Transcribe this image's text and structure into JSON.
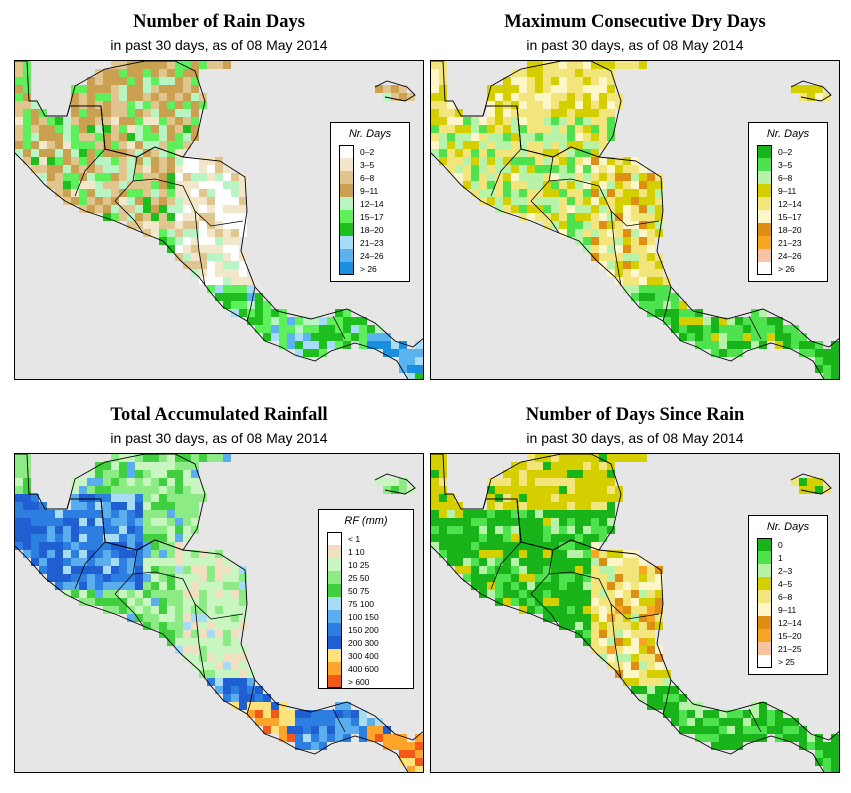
{
  "panels": [
    {
      "id": "rain-days",
      "title": "Number of Rain Days",
      "subtitle": "in past 30 days, as of  08 May 2014",
      "legend": {
        "title": "Nr. Days",
        "items": [
          {
            "label": "0–2",
            "color": "#ffffff"
          },
          {
            "label": "3–5",
            "color": "#f3e7cb"
          },
          {
            "label": "6–8",
            "color": "#e0c58f"
          },
          {
            "label": "9–11",
            "color": "#c9a150"
          },
          {
            "label": "12–14",
            "color": "#b9f5c4"
          },
          {
            "label": "15–17",
            "color": "#5ef05a"
          },
          {
            "label": "18–20",
            "color": "#1fbe1f"
          },
          {
            "label": "21–23",
            "color": "#a6dcf7"
          },
          {
            "label": "24–26",
            "color": "#5ab3ee"
          },
          {
            "label": "> 26",
            "color": "#1a8fe0"
          }
        ]
      },
      "scheme": "raindays"
    },
    {
      "id": "dry-days",
      "title": "Maximum Consecutive Dry Days",
      "subtitle": "in past 30 days, as of  08 May 2014",
      "legend": {
        "title": "Nr. Days",
        "items": [
          {
            "label": "0–2",
            "color": "#19b419"
          },
          {
            "label": "3–5",
            "color": "#4ee34e"
          },
          {
            "label": "6–8",
            "color": "#b6f2a8"
          },
          {
            "label": "9–11",
            "color": "#d6cf00"
          },
          {
            "label": "12–14",
            "color": "#f2e57c"
          },
          {
            "label": "15–17",
            "color": "#fdf6c8"
          },
          {
            "label": "18–20",
            "color": "#de8e12"
          },
          {
            "label": "21–23",
            "color": "#f6a623"
          },
          {
            "label": "24–26",
            "color": "#f6c3a3"
          },
          {
            "label": "> 26",
            "color": "#ffffff"
          }
        ]
      },
      "scheme": "drydays"
    },
    {
      "id": "rainfall",
      "title": "Total Accumulated Rainfall",
      "subtitle": "in past 30 days, as of  08 May 2014",
      "legend": {
        "title": "RF (mm)",
        "items": [
          {
            "label": "< 1",
            "color": "#ffffff"
          },
          {
            "label": "1  10",
            "color": "#f0dfc0"
          },
          {
            "label": "10  25",
            "color": "#c8f5c0"
          },
          {
            "label": "25  50",
            "color": "#8ceb84"
          },
          {
            "label": "50  75",
            "color": "#3fcf3f"
          },
          {
            "label": "75  100",
            "color": "#a8dcf5"
          },
          {
            "label": "100  150",
            "color": "#5aaeee"
          },
          {
            "label": "150  200",
            "color": "#2c7fe0"
          },
          {
            "label": "200  300",
            "color": "#1f5fd1"
          },
          {
            "label": "300  400",
            "color": "#fde37a"
          },
          {
            "label": "400  600",
            "color": "#fba52a"
          },
          {
            "label": "> 600",
            "color": "#f35a18"
          }
        ]
      },
      "scheme": "rainfall"
    },
    {
      "id": "since-rain",
      "title": "Number of Days Since Rain",
      "subtitle": "in past 30 days, as of  08 May 2014",
      "legend": {
        "title": "Nr. Days",
        "items": [
          {
            "label": "0",
            "color": "#19b419"
          },
          {
            "label": "1",
            "color": "#4ee34e"
          },
          {
            "label": "2–3",
            "color": "#b6f2a8"
          },
          {
            "label": "4–5",
            "color": "#d6cf00"
          },
          {
            "label": "6–8",
            "color": "#f2e57c"
          },
          {
            "label": "9–11",
            "color": "#fdf6c8"
          },
          {
            "label": "12–14",
            "color": "#de8e12"
          },
          {
            "label": "15–20",
            "color": "#f6a623"
          },
          {
            "label": "21–25",
            "color": "#f6c3a3"
          },
          {
            "label": "> 25",
            "color": "#ffffff"
          }
        ]
      },
      "scheme": "sincerain"
    }
  ]
}
